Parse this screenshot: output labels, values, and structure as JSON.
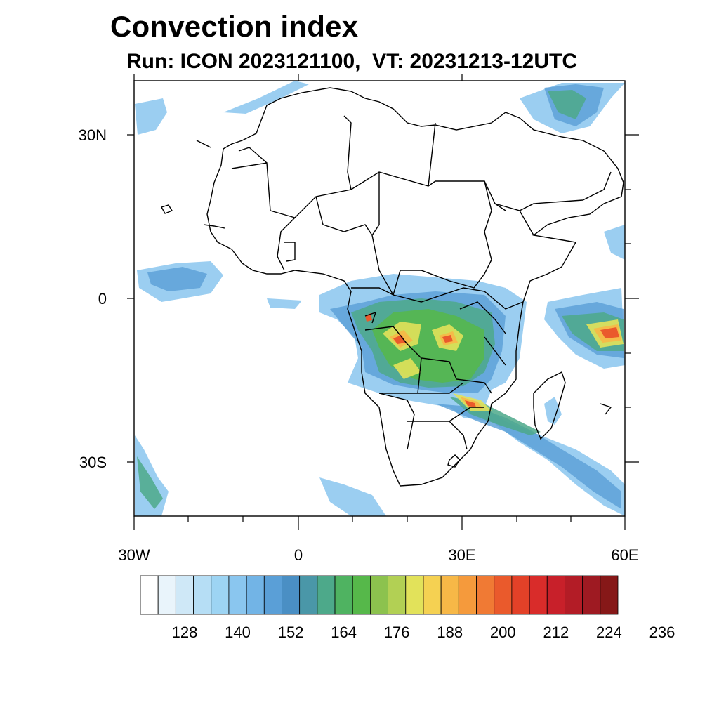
{
  "title": "Convection index",
  "subtitle": "Run: ICON 2023121100,  VT: 20231213-12UTC",
  "axes": {
    "lat_labels": [
      "30N",
      "0",
      "30S"
    ],
    "lon_labels": [
      "30W",
      "0",
      "30E",
      "60E"
    ]
  },
  "colorbar": {
    "colors": [
      "#ffffff",
      "#e9f4fb",
      "#cfe8f7",
      "#b6def5",
      "#9dd4f3",
      "#8ac6ef",
      "#72b4e6",
      "#5a9fd7",
      "#4a8fc4",
      "#4a97a8",
      "#4da98a",
      "#4fb361",
      "#56b84a",
      "#8cc24e",
      "#b2d054",
      "#e2e25a",
      "#f5d152",
      "#f7b847",
      "#f59a3c",
      "#f07a34",
      "#ea5a2c",
      "#e34128",
      "#d92c2a",
      "#c8202a",
      "#b31c26",
      "#9e1a22",
      "#861818"
    ],
    "tick_labels": [
      "128",
      "140",
      "152",
      "164",
      "176",
      "188",
      "200",
      "212",
      "224",
      "236"
    ]
  }
}
